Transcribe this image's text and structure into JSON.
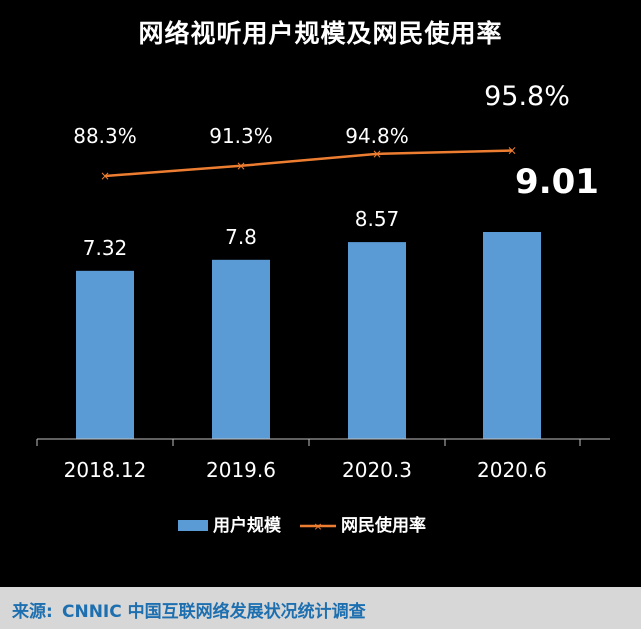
{
  "title": "网络视听用户规模及网民使用率",
  "chart_data": {
    "type": "bar",
    "categories": [
      "2018.12",
      "2019.6",
      "2020.3",
      "2020.6"
    ],
    "series": [
      {
        "name": "用户规模",
        "type": "bar",
        "values": [
          7.32,
          7.8,
          8.57,
          9.01
        ],
        "labels": [
          "7.32",
          "7.8",
          "8.57",
          "9.01"
        ],
        "color": "#5b9bd5"
      },
      {
        "name": "网民使用率",
        "type": "line",
        "values": [
          88.3,
          91.3,
          94.8,
          95.8
        ],
        "labels": [
          "88.3%",
          "91.3%",
          "94.8%",
          "95.8%"
        ],
        "color": "#ed7d31"
      }
    ],
    "grid": false,
    "legend": "bottom"
  },
  "source": {
    "label": "来源:",
    "text": "CNNIC 中国互联网络发展状况统计调查"
  }
}
